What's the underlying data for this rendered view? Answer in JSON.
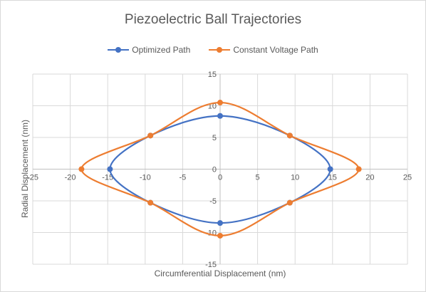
{
  "chart_data": {
    "type": "scatter",
    "title": "Piezoelectric Ball Trajectories",
    "xlabel": "Circumferential Displacement (nm)",
    "ylabel": "Radial Displacement (nm)",
    "xlim": [
      -25,
      25
    ],
    "ylim": [
      -15,
      15
    ],
    "x_ticks": [
      -25,
      -20,
      -15,
      -10,
      -5,
      0,
      5,
      10,
      15,
      20,
      25
    ],
    "y_ticks": [
      -15,
      -10,
      -5,
      0,
      5,
      10,
      15
    ],
    "grid": true,
    "legend_position": "top",
    "series": [
      {
        "name": "Optimized Path",
        "color": "#4472C4",
        "smooth": true,
        "points": [
          [
            0,
            8.4
          ],
          [
            9.3,
            5.3
          ],
          [
            14.7,
            0
          ],
          [
            9.3,
            -5.3
          ],
          [
            0,
            -8.5
          ],
          [
            -9.3,
            -5.3
          ],
          [
            -14.7,
            0
          ],
          [
            -9.3,
            5.3
          ],
          [
            0,
            8.4
          ]
        ]
      },
      {
        "name": "Constant Voltage Path",
        "color": "#ED7D31",
        "smooth": true,
        "points": [
          [
            0,
            10.5
          ],
          [
            9.3,
            5.3
          ],
          [
            18.5,
            0
          ],
          [
            9.3,
            -5.3
          ],
          [
            0,
            -10.5
          ],
          [
            -9.3,
            -5.3
          ],
          [
            -18.5,
            0
          ],
          [
            -9.3,
            5.3
          ],
          [
            0,
            10.5
          ]
        ]
      }
    ]
  }
}
